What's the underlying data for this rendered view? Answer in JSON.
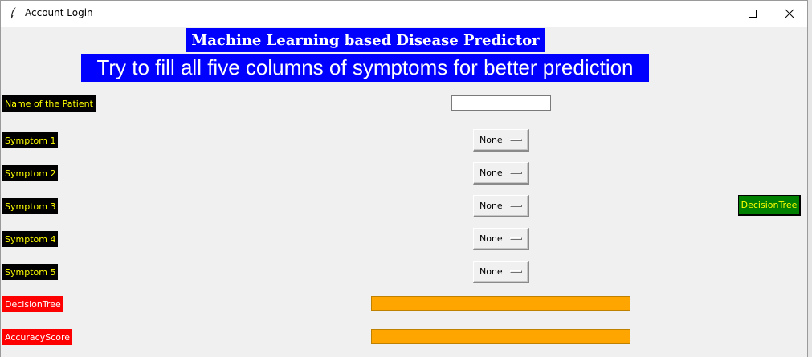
{
  "window": {
    "title": "Account Login"
  },
  "header": {
    "heading": "Machine Learning based Disease Predictor",
    "subheading": "Try to fill all five columns of symptoms for better prediction"
  },
  "form": {
    "patient_label": "Name of the Patient",
    "patient_value": "",
    "symptoms": [
      {
        "label": "Symptom 1",
        "value": "None"
      },
      {
        "label": "Symptom 2",
        "value": "None"
      },
      {
        "label": "Symptom 3",
        "value": "None"
      },
      {
        "label": "Symptom 4",
        "value": "None"
      },
      {
        "label": "Symptom 5",
        "value": "None"
      }
    ]
  },
  "actions": {
    "decision_tree_button": "DecisionTree"
  },
  "results": {
    "decision_tree_label": "DecisionTree",
    "decision_tree_value": "",
    "accuracy_label": "AccuracyScore",
    "accuracy_value": ""
  },
  "colors": {
    "heading_bg": "#0000ff",
    "label_bg": "#000000",
    "label_fg": "#ffff00",
    "result_label_bg": "#ff0000",
    "result_field_bg": "#ffa500",
    "button_bg": "#008000"
  },
  "icons": {
    "app": "feather-icon",
    "minimize": "minimize-icon",
    "maximize": "maximize-icon",
    "close": "close-icon"
  }
}
